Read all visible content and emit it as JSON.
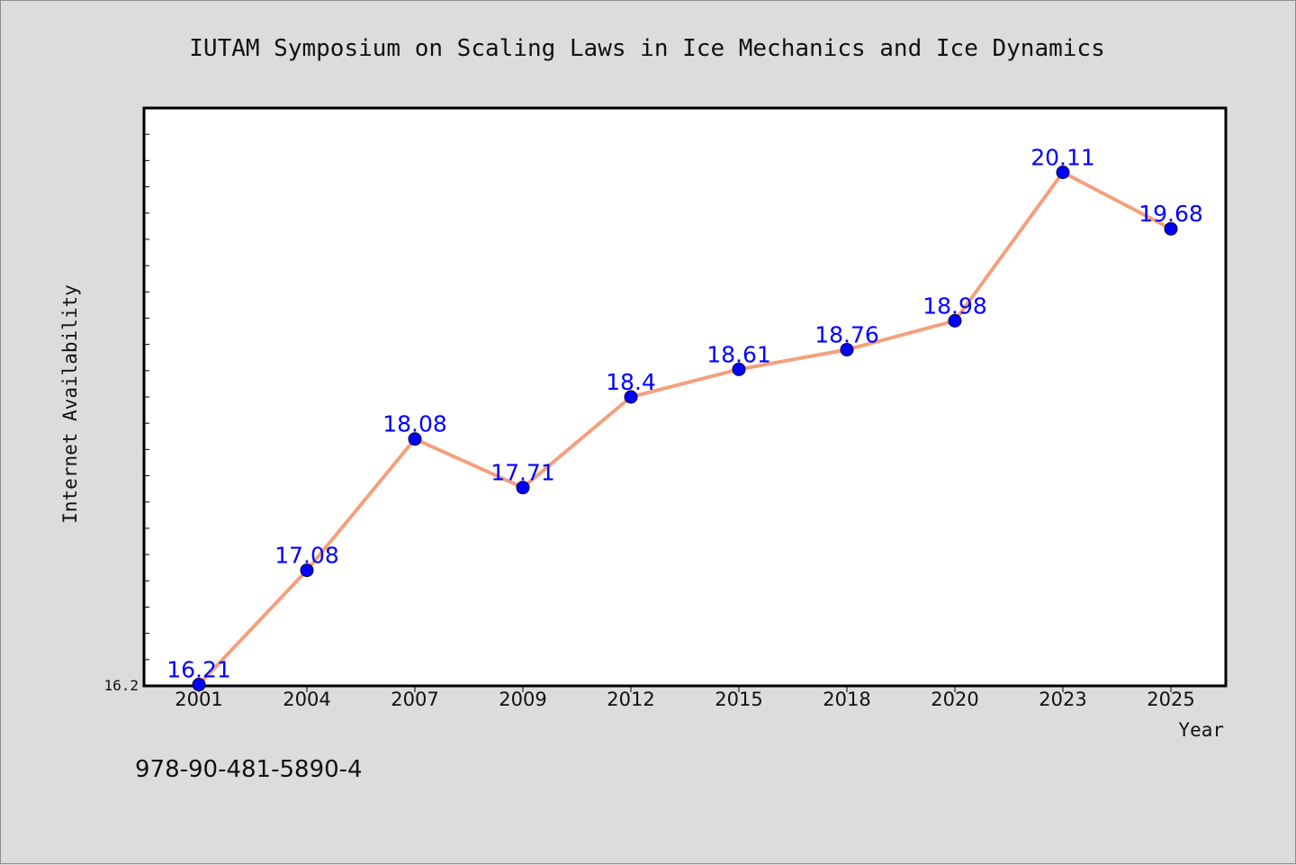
{
  "chart_data": {
    "type": "line",
    "title": "IUTAM Symposium on Scaling Laws in Ice Mechanics and Ice Dynamics",
    "xlabel": "Year",
    "ylabel": "Internet Availability",
    "categories": [
      "2001",
      "2004",
      "2007",
      "2009",
      "2012",
      "2015",
      "2018",
      "2020",
      "2023",
      "2025"
    ],
    "series": [
      {
        "values": [
          16.21,
          17.08,
          18.08,
          17.71,
          18.4,
          18.61,
          18.76,
          18.98,
          20.11,
          19.68
        ]
      }
    ],
    "data_labels": [
      "16.21",
      "17.08",
      "18.08",
      "17.71",
      "18.4",
      "18.61",
      "18.76",
      "18.98",
      "20.11",
      "19.68"
    ],
    "ylim": [
      16.2,
      20.6
    ],
    "y_tick_labels": [
      "16.2"
    ],
    "grid": false,
    "colors": {
      "line": "#f4a07c",
      "marker": "#0000ff",
      "data_label": "#0000ff",
      "background": "#dcdcdc",
      "plot_background": "#ffffff"
    }
  },
  "footer": {
    "isbn": "978-90-481-5890-4"
  }
}
